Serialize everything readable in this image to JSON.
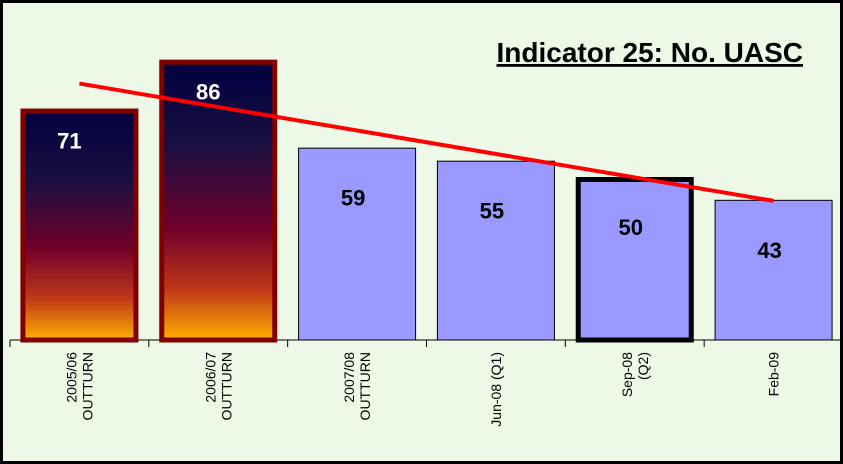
{
  "chart_data": {
    "type": "bar",
    "title": "Indicator 25: No. UASC",
    "categories": [
      "2005/06\nOUTTURN",
      "2006/07\nOUTTURN",
      "2007/08\nOUTTURN",
      "Jun-08 (Q1)",
      "Sep-08\n(Q2)",
      "Feb-09"
    ],
    "values": [
      71,
      86,
      59,
      55,
      50,
      43
    ],
    "colors": [
      "gradient",
      "gradient",
      "#9999ff",
      "#9999ff",
      "#9999ff",
      "#9999ff"
    ],
    "border_colors": [
      "#800000",
      "#800000",
      "#000000",
      "#000000",
      "#000000",
      "#000000"
    ],
    "border_widths": [
      5,
      5,
      1,
      1,
      5,
      1
    ],
    "label_colors": [
      "#ffffff",
      "#ffffff",
      "#000000",
      "#000000",
      "#000000",
      "#000000"
    ],
    "trend_line": {
      "color": "#ff0000"
    },
    "ylim": [
      0,
      100
    ]
  }
}
